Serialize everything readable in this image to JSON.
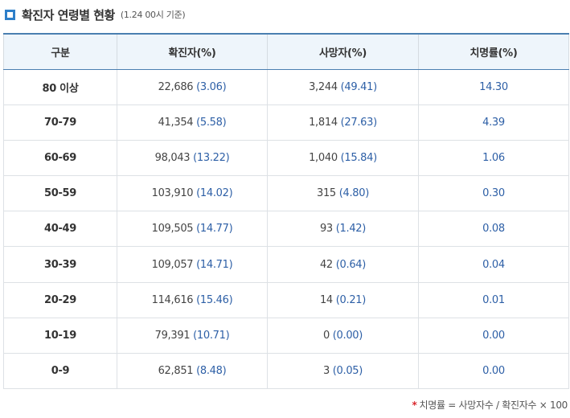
{
  "title": "확진자 연령별 현황",
  "subtitle": "(1.24 00시 기준)",
  "headers": [
    "구분",
    "확진자(%)",
    "사망자(%)",
    "치명률(%)"
  ],
  "rows": [
    {
      "age": "80 이상",
      "confirmed": "22,686",
      "confirmed_pct": "(3.06)",
      "deaths": "3,244",
      "deaths_pct": "(49.41)",
      "fatality": "14.30"
    },
    {
      "age": "70-79",
      "confirmed": "41,354",
      "confirmed_pct": "(5.58)",
      "deaths": "1,814",
      "deaths_pct": "(27.63)",
      "fatality": "4.39"
    },
    {
      "age": "60-69",
      "confirmed": "98,043",
      "confirmed_pct": "(13.22)",
      "deaths": "1,040",
      "deaths_pct": "(15.84)",
      "fatality": "1.06"
    },
    {
      "age": "50-59",
      "confirmed": "103,910",
      "confirmed_pct": "(14.02)",
      "deaths": "315",
      "deaths_pct": "(4.80)",
      "fatality": "0.30"
    },
    {
      "age": "40-49",
      "confirmed": "109,505",
      "confirmed_pct": "(14.77)",
      "deaths": "93",
      "deaths_pct": "(1.42)",
      "fatality": "0.08"
    },
    {
      "age": "30-39",
      "confirmed": "109,057",
      "confirmed_pct": "(14.71)",
      "deaths": "42",
      "deaths_pct": "(0.64)",
      "fatality": "0.04"
    },
    {
      "age": "20-29",
      "confirmed": "114,616",
      "confirmed_pct": "(15.46)",
      "deaths": "14",
      "deaths_pct": "(0.21)",
      "fatality": "0.01"
    },
    {
      "age": "10-19",
      "confirmed": "79,391",
      "confirmed_pct": "(10.71)",
      "deaths": "0",
      "deaths_pct": "(0.00)",
      "fatality": "0.00"
    },
    {
      "age": "0-9",
      "confirmed": "62,851",
      "confirmed_pct": "(8.48)",
      "deaths": "3",
      "deaths_pct": "(0.05)",
      "fatality": "0.00"
    }
  ],
  "footnote": {
    "star": "*",
    "text": "치명률 = 사망자수 / 확진자수 × 100"
  },
  "colors": {
    "accent": "#2e7fc9",
    "header_bg": "#eef5fb",
    "pct_text": "#2d5fa6",
    "star": "#d9272e"
  },
  "icons": {
    "title_marker": "square-bullet-icon"
  }
}
